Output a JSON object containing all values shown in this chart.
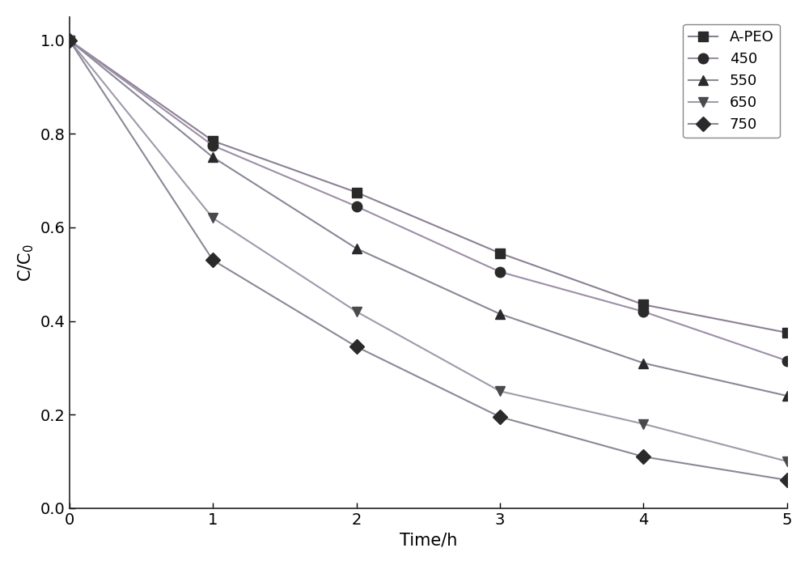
{
  "series": [
    {
      "label": "A-PEO",
      "x": [
        0,
        1,
        2,
        3,
        4,
        5
      ],
      "y": [
        1.0,
        0.785,
        0.675,
        0.545,
        0.435,
        0.375
      ],
      "marker": "s",
      "markercolor": "#2a2a2a",
      "linecolor": "#8c8096"
    },
    {
      "label": "450",
      "x": [
        0,
        1,
        2,
        3,
        4,
        5
      ],
      "y": [
        1.0,
        0.775,
        0.645,
        0.505,
        0.42,
        0.315
      ],
      "marker": "o",
      "markercolor": "#2a2a2a",
      "linecolor": "#9e8ea8"
    },
    {
      "label": "550",
      "x": [
        0,
        1,
        2,
        3,
        4,
        5
      ],
      "y": [
        1.0,
        0.75,
        0.555,
        0.415,
        0.31,
        0.24
      ],
      "marker": "^",
      "markercolor": "#2a2a2a",
      "linecolor": "#8a8898"
    },
    {
      "label": "650",
      "x": [
        0,
        1,
        2,
        3,
        4,
        5
      ],
      "y": [
        1.0,
        0.62,
        0.42,
        0.25,
        0.18,
        0.1
      ],
      "marker": "v",
      "markercolor": "#4a4a4a",
      "linecolor": "#a09aaa"
    },
    {
      "label": "750",
      "x": [
        0,
        1,
        2,
        3,
        4,
        5
      ],
      "y": [
        1.0,
        0.53,
        0.345,
        0.195,
        0.11,
        0.06
      ],
      "marker": "D",
      "markercolor": "#2a2a2a",
      "linecolor": "#8c8898"
    }
  ],
  "xlabel": "Time/h",
  "ylabel": "C/C$_0$",
  "xlim": [
    0,
    5
  ],
  "ylim": [
    0.0,
    1.05
  ],
  "xticks": [
    0,
    1,
    2,
    3,
    4,
    5
  ],
  "yticks": [
    0.0,
    0.2,
    0.4,
    0.6,
    0.8,
    1.0
  ],
  "legend_loc": "upper right",
  "markersize": 9,
  "linewidth": 1.5,
  "background_color": "#ffffff",
  "tick_fontsize": 14,
  "label_fontsize": 15,
  "legend_fontsize": 13,
  "figure_width": 10.0,
  "figure_height": 6.98
}
